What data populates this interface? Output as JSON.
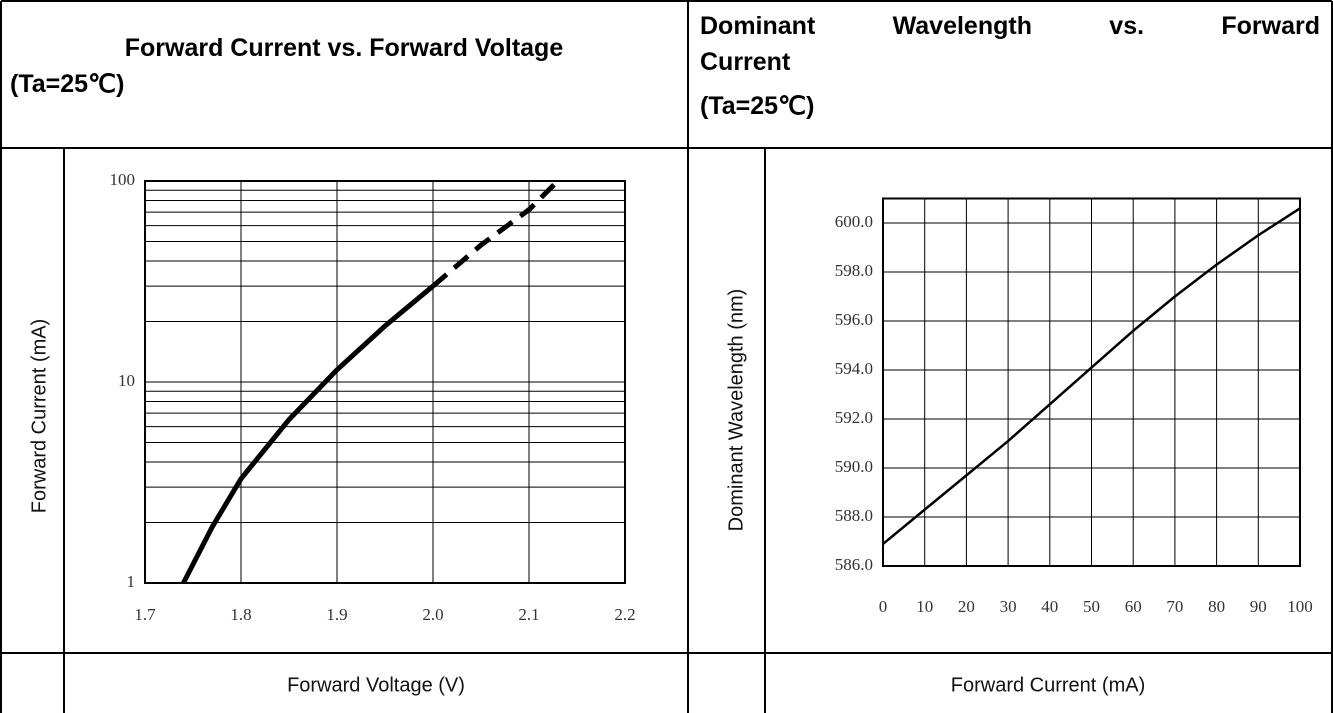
{
  "chart_data": [
    {
      "type": "line",
      "title": "Forward Current vs. Forward Voltage",
      "subtitle": "(Ta=25℃)",
      "xlabel": "Forward Voltage (V)",
      "ylabel": "Forward Current (mA)",
      "log_y": true,
      "grid": true,
      "color": "#000000",
      "xlim": [
        1.7,
        2.2
      ],
      "xticks": [
        1.7,
        1.8,
        1.9,
        {
          "value": 2,
          "label": "2.0"
        },
        2.1,
        2.2
      ],
      "ylim": [
        1,
        100
      ],
      "yticks": [
        1,
        10,
        100
      ],
      "minor_yticks": [
        2,
        3,
        4,
        5,
        6,
        7,
        8,
        9,
        20,
        30,
        40,
        50,
        60,
        70,
        80,
        90
      ],
      "series": [
        {
          "style": "solid",
          "x": [
            1.74,
            1.77,
            1.8,
            1.85,
            1.9,
            1.95,
            2.0
          ],
          "values": [
            1,
            1.9,
            3.3,
            6.5,
            11.5,
            19,
            30
          ]
        },
        {
          "style": "dashed",
          "x": [
            2.0,
            2.05,
            2.1,
            2.13
          ],
          "values": [
            30,
            48,
            72,
            100
          ]
        }
      ]
    },
    {
      "type": "line",
      "title": "Dominant Wavelength vs. Forward Current",
      "subtitle": "(Ta=25℃)",
      "xlabel": "Forward Current (mA)",
      "ylabel": "Dominant Wavelength (nm)",
      "grid": true,
      "color": "#000000",
      "xlim": [
        0,
        100
      ],
      "xticks": [
        0,
        10,
        20,
        30,
        40,
        50,
        60,
        70,
        80,
        90,
        100
      ],
      "ylim": [
        586,
        601
      ],
      "yticks": [
        {
          "value": 586,
          "label": "586.0"
        },
        {
          "value": 588,
          "label": "588.0"
        },
        {
          "value": 590,
          "label": "590.0"
        },
        {
          "value": 592,
          "label": "592.0"
        },
        {
          "value": 594,
          "label": "594.0"
        },
        {
          "value": 596,
          "label": "596.0"
        },
        {
          "value": 598,
          "label": "598.0"
        },
        {
          "value": 600,
          "label": "600.0"
        }
      ],
      "series": [
        {
          "style": "solid",
          "x": [
            0,
            10,
            20,
            30,
            40,
            50,
            60,
            70,
            80,
            90,
            100
          ],
          "values": [
            586.9,
            588.3,
            589.7,
            591.1,
            592.6,
            594.1,
            595.6,
            597.0,
            598.3,
            599.5,
            600.6
          ]
        }
      ]
    }
  ]
}
